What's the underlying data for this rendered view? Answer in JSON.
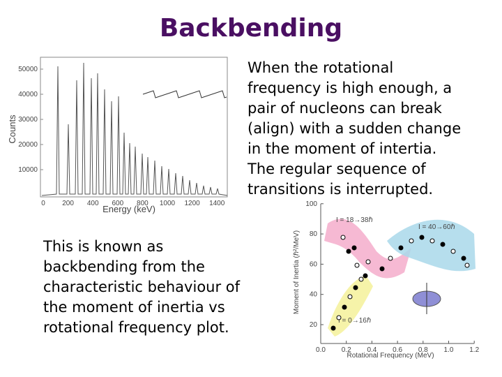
{
  "title": "Backbending",
  "paragraphs": [
    [
      "When the rotational",
      "frequency is high enough, a",
      "pair of nucleons can break",
      "(align) with a sudden change",
      "in the moment of intertia.",
      "The regular sequence of",
      "transitions is interrupted."
    ],
    [
      "This is known as",
      "backbending from the",
      "characteristic behaviour of",
      "the moment of inertia vs",
      "rotational frequency plot."
    ]
  ],
  "spectrum": {
    "y_label": "Counts",
    "x_label": "Energy (keV)",
    "yticks": [
      "10000",
      "20000",
      "30000",
      "40000",
      "50000"
    ],
    "xticks": [
      "0",
      "200",
      "400",
      "600",
      "800",
      "1000",
      "1200",
      "1400"
    ]
  },
  "inertia": {
    "y_label": "Moment of Inertia (ℏ²/MeV)",
    "x_label": "Rotational Frequency (MeV)",
    "yticks": [
      "20",
      "40",
      "60",
      "80",
      "100"
    ],
    "xticks": [
      "0.0",
      "0.2",
      "0.4",
      "0.6",
      "0.8",
      "1.0",
      "1.2"
    ],
    "annotations": [
      "I = 18→38ℏ",
      "I = 40→60ℏ",
      "I = 0→16ℏ"
    ]
  }
}
